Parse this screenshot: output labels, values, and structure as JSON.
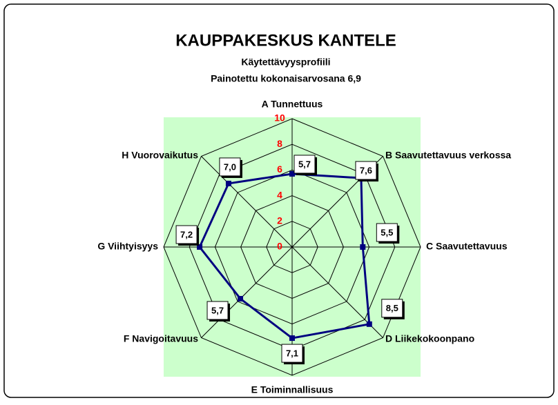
{
  "chart_data": {
    "type": "radar",
    "title": "KAUPPAKESKUS KANTELE",
    "subtitle": "Käytettävyysprofiili",
    "subtitle2": "Painotettu kokonaisarvosana 6,9",
    "categories": [
      "A Tunnettuus",
      "B Saavutettavuus verkossa",
      "C Saavutettavuus",
      "D Liikekokoonpano",
      "E Toiminnallisuus",
      "F Navigoitavuus",
      "G Viihtyisyys",
      "H Vuorovaikutus"
    ],
    "series": [
      {
        "name": "Kantele",
        "color": "#000080",
        "values": [
          5.7,
          7.6,
          5.5,
          8.5,
          7.1,
          5.7,
          7.2,
          7.0
        ],
        "value_labels": [
          "5,7",
          "7,6",
          "5,5",
          "8,5",
          "7,1",
          "5,7",
          "7,2",
          "7,0"
        ]
      }
    ],
    "ylim": [
      0,
      10
    ],
    "yticks": [
      0,
      2,
      4,
      6,
      8,
      10
    ],
    "grid": true,
    "tick_color": "#ff0000",
    "plot_background": "#ccffcc"
  }
}
